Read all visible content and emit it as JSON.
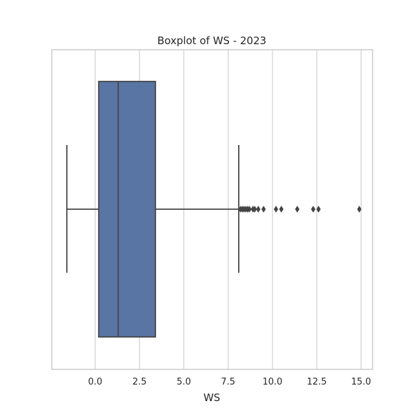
{
  "chart_data": {
    "type": "boxplot",
    "title": "Boxplot of WS - 2023",
    "xlabel": "WS",
    "ylabel": "",
    "xlim": [
      -2.45,
      15.65
    ],
    "xticks": [
      0.0,
      2.5,
      5.0,
      7.5,
      10.0,
      12.5,
      15.0
    ],
    "xtick_labels": [
      "0.0",
      "2.5",
      "5.0",
      "7.5",
      "10.0",
      "12.5",
      "15.0"
    ],
    "grid": true,
    "orientation": "horizontal",
    "box": {
      "whisker_low": -1.6,
      "q1": 0.2,
      "median": 1.3,
      "q3": 3.4,
      "whisker_high": 8.1
    },
    "outliers": [
      8.2,
      8.3,
      8.4,
      8.5,
      8.6,
      8.7,
      8.9,
      9.0,
      9.2,
      9.5,
      10.2,
      10.5,
      11.4,
      12.3,
      12.6,
      14.9
    ],
    "colors": {
      "box_fill": "#5975a4",
      "line": "#454545",
      "grid": "#d0d0d0",
      "spine": "#cccccc",
      "text": "#262626"
    }
  }
}
